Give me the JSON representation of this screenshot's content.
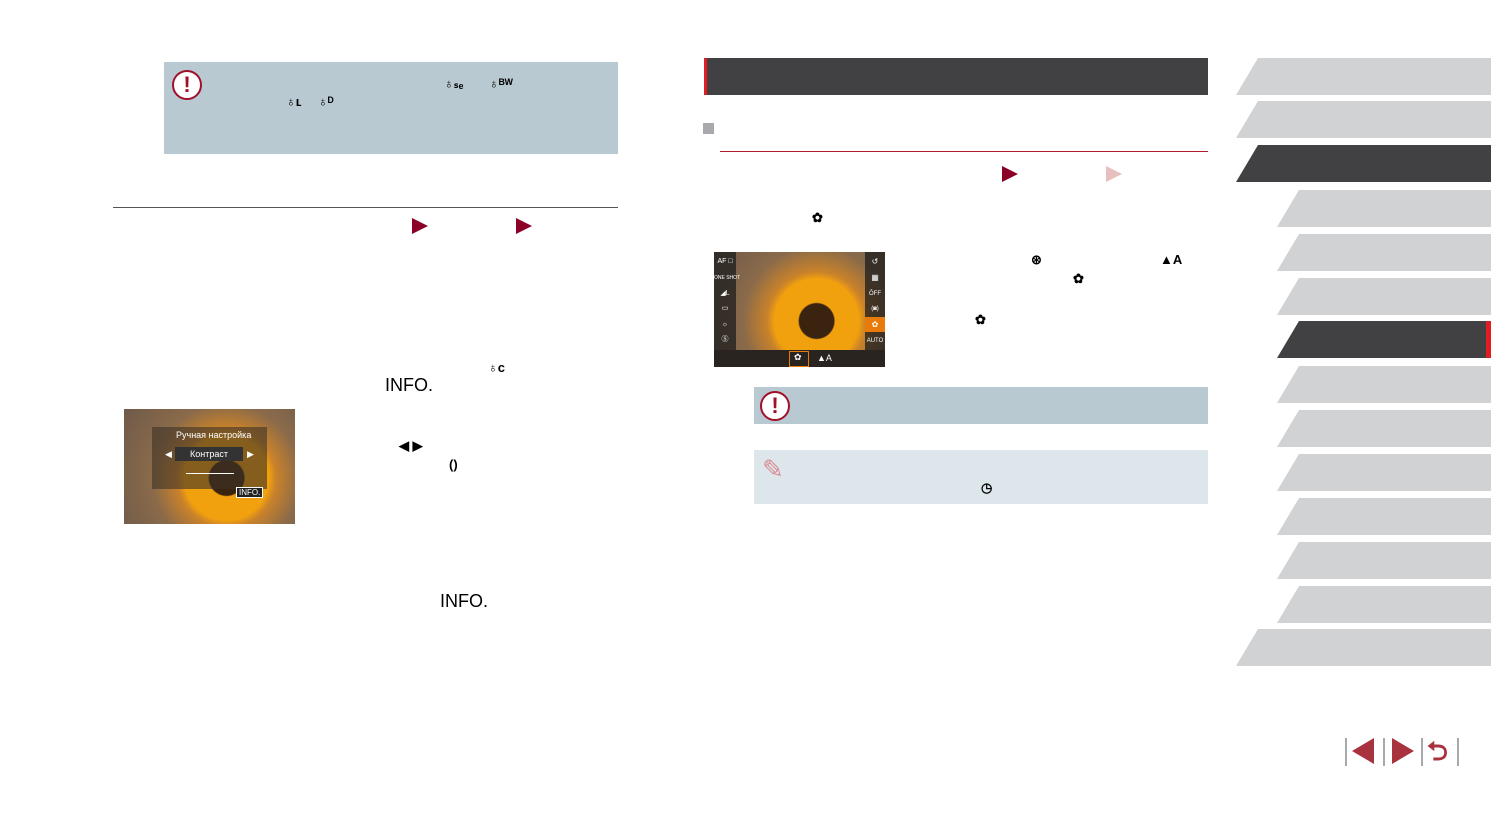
{
  "left": {
    "icons": [
      "filter-sepia-icon",
      "filter-bw-icon",
      "filter-landscape-icon",
      "filter-dark-icon"
    ],
    "info_label": "INFO.",
    "info_label_2": "INFO.",
    "camera_screen": {
      "title": "Ручная настройка",
      "item": "Контраст",
      "value_mark": "0",
      "info": "INFO."
    }
  },
  "right": {
    "icons": [
      "macro-icon",
      "func-set-icon",
      "auto-focus-range-icon",
      "self-timer-2s-icon"
    ],
    "camera_screen": {
      "left_items": [
        "AF □",
        "ONE SHOT",
        "◢L",
        "▭",
        "☼",
        "Ⓢ"
      ],
      "right_items": [
        "↺",
        "▦",
        "ÔFF",
        "(◙)",
        "✿",
        "AUTO"
      ],
      "bottom": [
        "✿",
        "▲A"
      ]
    }
  },
  "colors": {
    "accent": "#8a0026",
    "header": "#414042",
    "note": "#b9c9d1",
    "tip": "#dde6eb",
    "tab": "#d1d2d4",
    "active_marker": "#e31b23"
  },
  "nav": {
    "buttons": [
      "previous-page",
      "next-page",
      "back"
    ]
  },
  "tabs": {
    "count": 13,
    "active": [
      2,
      6
    ]
  }
}
